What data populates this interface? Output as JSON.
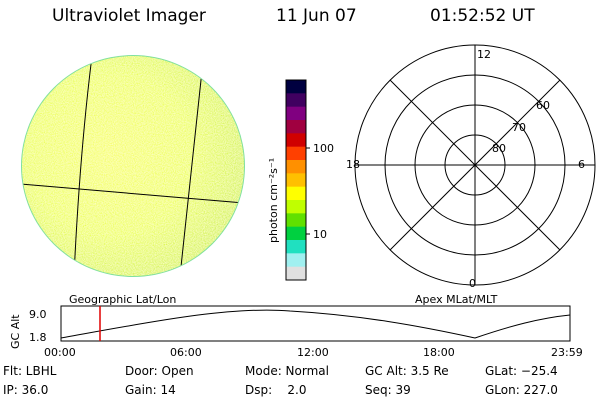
{
  "header": {
    "instrument": "Ultraviolet Imager",
    "date": "11 Jun 07",
    "time": "01:52:52 UT"
  },
  "colorbar": {
    "label": "photon cm⁻²s⁻¹",
    "ticks": [
      "100",
      "10"
    ],
    "colors": [
      "#000040",
      "#400060",
      "#800080",
      "#a00040",
      "#d00000",
      "#ff4000",
      "#ff9000",
      "#ffc000",
      "#ffff00",
      "#c0ff00",
      "#60e000",
      "#00d040",
      "#20e0c0",
      "#a0f0f0",
      "#e0e0e0"
    ]
  },
  "polar": {
    "mlt_labels": [
      "12",
      "18",
      "6",
      "0"
    ],
    "lat_labels": [
      "60",
      "70",
      "80"
    ]
  },
  "orbit": {
    "left_title": "Geographic Lat/Lon",
    "right_title": "Apex MLat/MLT",
    "ylabel": "GC Alt",
    "y_top": "9.0",
    "y_bottom": "1.8",
    "x_ticks": [
      "00:00",
      "06:00",
      "12:00",
      "18:00",
      "23:59"
    ],
    "current_time_marker": "01:52"
  },
  "info": {
    "flt": "Flt: LBHL",
    "door": "Door: Open",
    "mode": "Mode: Normal",
    "gc_alt": "GC Alt: 3.5 Re",
    "glat": "GLat: −25.4",
    "ip": "IP: 36.0",
    "gain": "Gain: 14",
    "dsp": "Dsp:    2.0",
    "seq": "Seq: 39",
    "glon": "GLon: 227.0"
  }
}
